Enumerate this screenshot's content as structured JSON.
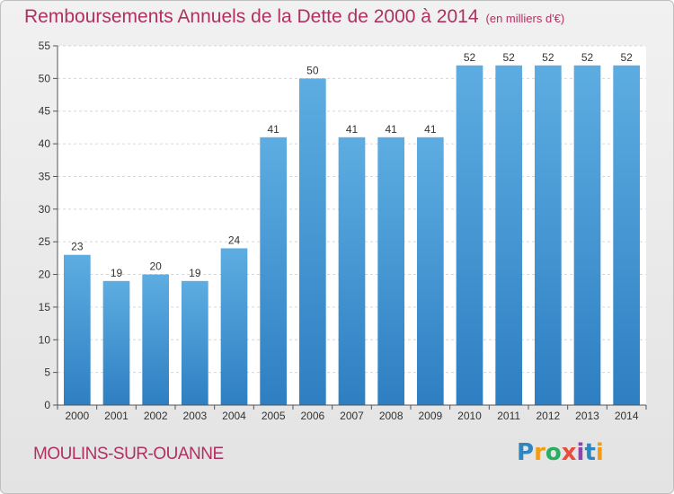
{
  "header": {
    "title": "Remboursements Annuels de la Dette de 2000 à 2014",
    "unit": "(en milliers d'€)"
  },
  "footer": {
    "town": "MOULINS-SUR-OUANNE",
    "logo_letters": [
      "P",
      "r",
      "o",
      "x",
      "i",
      "t",
      "i"
    ],
    "logo_colors": [
      "#2e86c1",
      "#f39c12",
      "#27ae60",
      "#e74c3c",
      "#8e44ad",
      "#2e86c1",
      "#f39c12"
    ]
  },
  "chart_data": {
    "type": "bar",
    "categories": [
      "2000",
      "2001",
      "2002",
      "2003",
      "2004",
      "2005",
      "2006",
      "2007",
      "2008",
      "2009",
      "2010",
      "2011",
      "2012",
      "2013",
      "2014"
    ],
    "values": [
      23,
      19,
      20,
      19,
      24,
      41,
      50,
      41,
      41,
      41,
      52,
      52,
      52,
      52,
      52
    ],
    "ylim": [
      0,
      55
    ],
    "yticks": [
      0,
      5,
      10,
      15,
      20,
      25,
      30,
      35,
      40,
      45,
      50,
      55
    ],
    "grid": true,
    "bar_color_top": "#5dade2",
    "bar_color_bottom": "#2e7fc2"
  }
}
